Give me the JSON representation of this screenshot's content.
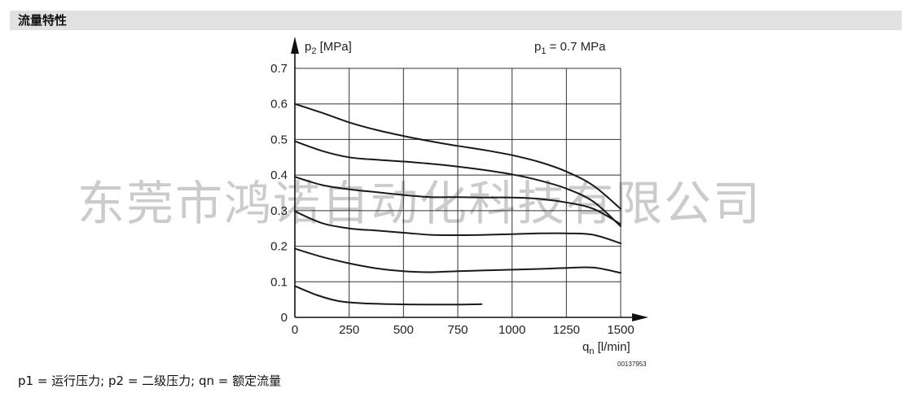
{
  "header": {
    "title": "流量特性"
  },
  "footnote": {
    "text": "p1 = 运行压力; p2 = 二级压力; qn = 额定流量"
  },
  "watermark": {
    "text": "东莞市鸿诺自动化科技有限公司"
  },
  "figure_code": "00137953",
  "colors": {
    "header_bg": "#e1e1e1",
    "line": "#1a1a1a",
    "grid": "#333333"
  },
  "chart_data": {
    "type": "line",
    "ylabel": {
      "base": "p",
      "sub": "2",
      "rest": " [MPa]"
    },
    "xlabel": {
      "base": "q",
      "sub": "n",
      "rest": " [l/min]"
    },
    "annotation": {
      "base": "p",
      "sub": "1",
      "rest": " = 0.7 MPa"
    },
    "xlim": [
      0,
      1500
    ],
    "ylim": [
      0,
      0.7
    ],
    "x_ticks": [
      0,
      250,
      500,
      750,
      1000,
      1250,
      1500
    ],
    "y_ticks": [
      0,
      0.1,
      0.2,
      0.3,
      0.4,
      0.5,
      0.6,
      0.7
    ],
    "y_tick_labels": [
      "0",
      "0.1",
      "0.2",
      "0.3",
      "0.4",
      "0.5",
      "0.6",
      "0.7"
    ],
    "grid": true,
    "series": [
      {
        "points": [
          [
            0,
            0.6
          ],
          [
            125,
            0.575
          ],
          [
            250,
            0.548
          ],
          [
            375,
            0.527
          ],
          [
            500,
            0.51
          ],
          [
            625,
            0.495
          ],
          [
            750,
            0.482
          ],
          [
            875,
            0.47
          ],
          [
            1000,
            0.456
          ],
          [
            1125,
            0.437
          ],
          [
            1250,
            0.41
          ],
          [
            1375,
            0.37
          ],
          [
            1500,
            0.305
          ]
        ]
      },
      {
        "points": [
          [
            0,
            0.495
          ],
          [
            125,
            0.468
          ],
          [
            250,
            0.45
          ],
          [
            375,
            0.443
          ],
          [
            500,
            0.438
          ],
          [
            625,
            0.432
          ],
          [
            750,
            0.424
          ],
          [
            875,
            0.414
          ],
          [
            1000,
            0.402
          ],
          [
            1125,
            0.385
          ],
          [
            1250,
            0.362
          ],
          [
            1375,
            0.325
          ],
          [
            1500,
            0.256
          ]
        ]
      },
      {
        "points": [
          [
            0,
            0.395
          ],
          [
            125,
            0.372
          ],
          [
            250,
            0.36
          ],
          [
            375,
            0.352
          ],
          [
            500,
            0.344
          ],
          [
            625,
            0.338
          ],
          [
            750,
            0.338
          ],
          [
            875,
            0.337
          ],
          [
            1000,
            0.337
          ],
          [
            1125,
            0.333
          ],
          [
            1250,
            0.323
          ],
          [
            1375,
            0.305
          ],
          [
            1500,
            0.262
          ]
        ]
      },
      {
        "points": [
          [
            0,
            0.298
          ],
          [
            125,
            0.265
          ],
          [
            250,
            0.25
          ],
          [
            375,
            0.244
          ],
          [
            500,
            0.238
          ],
          [
            625,
            0.232
          ],
          [
            750,
            0.231
          ],
          [
            875,
            0.232
          ],
          [
            1000,
            0.234
          ],
          [
            1125,
            0.236
          ],
          [
            1250,
            0.236
          ],
          [
            1375,
            0.232
          ],
          [
            1500,
            0.208
          ]
        ]
      },
      {
        "points": [
          [
            0,
            0.193
          ],
          [
            125,
            0.17
          ],
          [
            250,
            0.152
          ],
          [
            375,
            0.138
          ],
          [
            500,
            0.13
          ],
          [
            625,
            0.127
          ],
          [
            750,
            0.13
          ],
          [
            875,
            0.132
          ],
          [
            1000,
            0.134
          ],
          [
            1125,
            0.136
          ],
          [
            1250,
            0.139
          ],
          [
            1375,
            0.14
          ],
          [
            1500,
            0.125
          ]
        ]
      },
      {
        "points": [
          [
            0,
            0.088
          ],
          [
            100,
            0.063
          ],
          [
            200,
            0.046
          ],
          [
            300,
            0.04
          ],
          [
            450,
            0.037
          ],
          [
            600,
            0.036
          ],
          [
            750,
            0.036
          ],
          [
            860,
            0.037
          ]
        ]
      }
    ]
  }
}
